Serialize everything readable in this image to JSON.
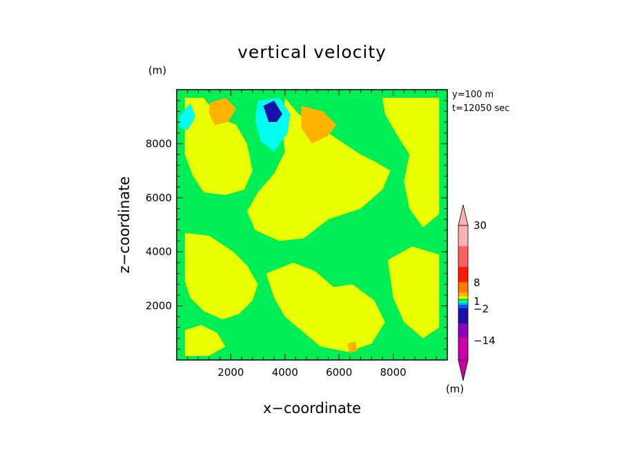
{
  "chart_data": {
    "type": "heatmap",
    "title": "vertical velocity",
    "xlabel": "x−coordinate",
    "ylabel": "z−coordinate",
    "y_unit": "(m)",
    "x_unit": "(m)",
    "annotation_lines": [
      "y=100 m",
      "t=12050 sec"
    ],
    "xlim": [
      0,
      10000
    ],
    "ylim": [
      0,
      10000
    ],
    "x_ticks": [
      2000,
      4000,
      6000,
      8000
    ],
    "y_ticks": [
      2000,
      4000,
      6000,
      8000
    ],
    "x_tick_labels": [
      "2000",
      "4000",
      "6000",
      "8000"
    ],
    "y_tick_labels": [
      "2000",
      "4000",
      "6000",
      "8000"
    ],
    "background_color": "#00ee55",
    "colorbar": {
      "colors": [
        "#cc00aa",
        "#8a00bb",
        "#1a10aa",
        "#0055ff",
        "#00b4ff",
        "#00ff88",
        "#22dd22",
        "#e7ff00",
        "#ffb300",
        "#ff7a00",
        "#ff1a00",
        "#ff6060",
        "#ffb0b0"
      ],
      "labels": [
        "30",
        "8",
        "1",
        "−2",
        "−14"
      ],
      "label_values": [
        30,
        8,
        1,
        -2,
        -14
      ]
    },
    "regions": [
      {
        "name": "yellow-band",
        "color": "#e7ff00",
        "points": [
          [
            300,
            9700
          ],
          [
            1000,
            9700
          ],
          [
            1500,
            9000
          ],
          [
            2200,
            8700
          ],
          [
            2600,
            8000
          ],
          [
            2800,
            7000
          ],
          [
            2500,
            6300
          ],
          [
            1800,
            6100
          ],
          [
            1000,
            6200
          ],
          [
            600,
            6800
          ],
          [
            300,
            7600
          ]
        ]
      },
      {
        "name": "yellow-center",
        "color": "#e7ff00",
        "points": [
          [
            4000,
            9700
          ],
          [
            4500,
            9100
          ],
          [
            5100,
            8700
          ],
          [
            5600,
            8400
          ],
          [
            6200,
            8000
          ],
          [
            6800,
            7600
          ],
          [
            7400,
            7300
          ],
          [
            7900,
            7000
          ],
          [
            7600,
            6300
          ],
          [
            6800,
            5600
          ],
          [
            5600,
            5200
          ],
          [
            4700,
            4500
          ],
          [
            3800,
            4400
          ],
          [
            2900,
            4800
          ],
          [
            2600,
            5500
          ],
          [
            3000,
            6200
          ],
          [
            3600,
            6900
          ],
          [
            4000,
            7700
          ],
          [
            3900,
            8500
          ]
        ]
      },
      {
        "name": "yellow-right",
        "color": "#e7ff00",
        "points": [
          [
            7600,
            9700
          ],
          [
            9700,
            9700
          ],
          [
            9700,
            5400
          ],
          [
            9100,
            4900
          ],
          [
            8600,
            5600
          ],
          [
            8400,
            6600
          ],
          [
            8600,
            7600
          ],
          [
            8100,
            8400
          ],
          [
            7700,
            9100
          ]
        ]
      },
      {
        "name": "yellow-lower-left",
        "color": "#e7ff00",
        "points": [
          [
            300,
            4700
          ],
          [
            1200,
            4600
          ],
          [
            2100,
            4000
          ],
          [
            2600,
            3500
          ],
          [
            3000,
            2800
          ],
          [
            2800,
            2200
          ],
          [
            2300,
            1700
          ],
          [
            1700,
            1500
          ],
          [
            1000,
            1800
          ],
          [
            500,
            2300
          ],
          [
            300,
            2900
          ]
        ]
      },
      {
        "name": "yellow-lower-mid",
        "color": "#e7ff00",
        "points": [
          [
            3300,
            3200
          ],
          [
            4300,
            3600
          ],
          [
            5100,
            3300
          ],
          [
            5800,
            2700
          ],
          [
            6500,
            2800
          ],
          [
            7300,
            2200
          ],
          [
            7700,
            1400
          ],
          [
            7200,
            600
          ],
          [
            6300,
            300
          ],
          [
            5300,
            500
          ],
          [
            4600,
            1100
          ],
          [
            4000,
            1600
          ],
          [
            3600,
            2300
          ]
        ]
      },
      {
        "name": "yellow-lower-right",
        "color": "#e7ff00",
        "points": [
          [
            7800,
            3700
          ],
          [
            8700,
            4200
          ],
          [
            9700,
            3900
          ],
          [
            9700,
            1200
          ],
          [
            9100,
            800
          ],
          [
            8400,
            1400
          ],
          [
            8000,
            2300
          ]
        ]
      },
      {
        "name": "yellow-bottom-left",
        "color": "#e7ff00",
        "points": [
          [
            300,
            1100
          ],
          [
            900,
            1300
          ],
          [
            1500,
            1000
          ],
          [
            1800,
            500
          ],
          [
            1200,
            150
          ],
          [
            300,
            150
          ]
        ]
      },
      {
        "name": "green-patch-1",
        "color": "#00ee55",
        "points": [
          [
            1500,
            5300
          ],
          [
            2100,
            5100
          ],
          [
            2300,
            4600
          ],
          [
            1800,
            4300
          ],
          [
            1300,
            4700
          ]
        ]
      },
      {
        "name": "green-patch-2",
        "color": "#00ee55",
        "points": [
          [
            5600,
            4300
          ],
          [
            6300,
            4700
          ],
          [
            6900,
            4200
          ],
          [
            6500,
            3600
          ],
          [
            5800,
            3700
          ]
        ]
      },
      {
        "name": "orange-1",
        "color": "#ffb300",
        "points": [
          [
            1200,
            9500
          ],
          [
            1800,
            9700
          ],
          [
            2200,
            9300
          ],
          [
            1900,
            8800
          ],
          [
            1400,
            8700
          ],
          [
            1200,
            9100
          ]
        ]
      },
      {
        "name": "orange-2",
        "color": "#ffb300",
        "points": [
          [
            4600,
            9400
          ],
          [
            5400,
            9200
          ],
          [
            5900,
            8700
          ],
          [
            5600,
            8300
          ],
          [
            5000,
            8000
          ],
          [
            4600,
            8600
          ]
        ]
      },
      {
        "name": "orange-3",
        "color": "#ffb300",
        "points": [
          [
            6300,
            600
          ],
          [
            6600,
            700
          ],
          [
            6700,
            350
          ],
          [
            6400,
            250
          ]
        ]
      },
      {
        "name": "cyan-1",
        "color": "#00ffee",
        "points": [
          [
            3000,
            9600
          ],
          [
            3800,
            9700
          ],
          [
            4200,
            9100
          ],
          [
            4100,
            8400
          ],
          [
            3600,
            7700
          ],
          [
            3100,
            8100
          ],
          [
            2900,
            8900
          ]
        ]
      },
      {
        "name": "cyan-2",
        "color": "#00ffee",
        "points": [
          [
            100,
            9000
          ],
          [
            500,
            9500
          ],
          [
            700,
            9000
          ],
          [
            400,
            8500
          ],
          [
            100,
            8600
          ]
        ]
      },
      {
        "name": "blue-1",
        "color": "#1a10aa",
        "points": [
          [
            3200,
            9400
          ],
          [
            3600,
            9600
          ],
          [
            3900,
            9100
          ],
          [
            3700,
            8800
          ],
          [
            3400,
            8800
          ]
        ]
      }
    ]
  }
}
